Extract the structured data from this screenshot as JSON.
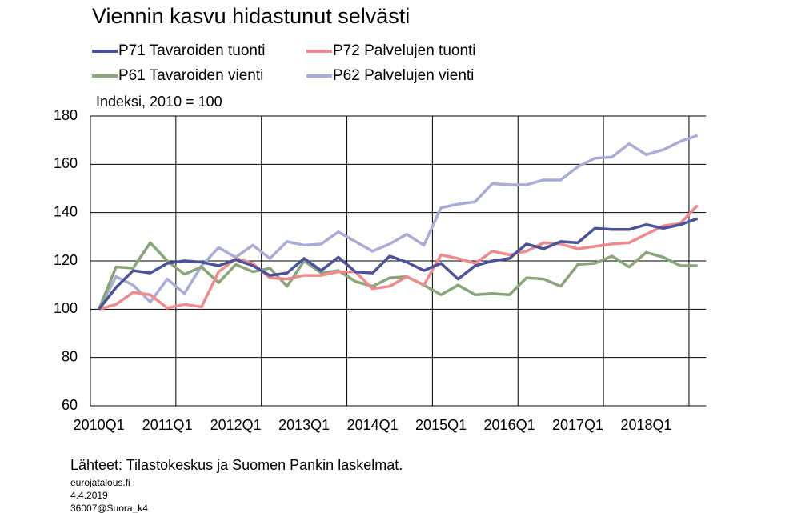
{
  "chart_data": {
    "type": "line",
    "title": "Viennin kasvu hidastunut selvästi",
    "y_label": "Indeksi, 2010 = 100",
    "categories": [
      "2010Q1",
      null,
      null,
      null,
      "2011Q1",
      null,
      null,
      null,
      "2012Q1",
      null,
      null,
      null,
      "2013Q1",
      null,
      null,
      null,
      "2014Q1",
      null,
      null,
      null,
      "2015Q1",
      null,
      null,
      null,
      "2016Q1",
      null,
      null,
      null,
      "2017Q1",
      null,
      null,
      null,
      "2018Q1",
      null,
      null,
      null
    ],
    "series": [
      {
        "name": "P71 Tavaroiden tuonti",
        "color": "#4a529a",
        "values": [
          100,
          109,
          116,
          115,
          119,
          120,
          119.5,
          118,
          120.5,
          118,
          114,
          115,
          121,
          116,
          121.5,
          115.5,
          115,
          122,
          119.5,
          116,
          119,
          112.5,
          118,
          120,
          121,
          127,
          125,
          128,
          127.5,
          133.5,
          133,
          133,
          135,
          133.5,
          135,
          137.5
        ]
      },
      {
        "name": "P72 Palvelujen tuonti",
        "color": "#ef8b8d",
        "values": [
          100,
          102,
          107,
          106,
          100.5,
          102,
          101,
          115.5,
          121,
          119,
          113,
          112.5,
          114,
          114,
          115.5,
          115.5,
          108.5,
          109.5,
          113.5,
          110,
          122.5,
          121,
          119,
          124,
          122.5,
          124,
          127.5,
          127,
          125,
          126,
          127,
          127.5,
          131,
          134.5,
          135.5,
          143
        ]
      },
      {
        "name": "P61 Tavaroiden vienti",
        "color": "#8aa57a",
        "values": [
          100,
          117.5,
          117,
          127.5,
          120,
          114.5,
          117.5,
          111,
          118.5,
          115.5,
          117,
          109.5,
          120,
          115,
          116,
          111.5,
          109.5,
          113,
          113.5,
          110,
          106,
          110,
          106,
          106.5,
          106,
          113,
          112.5,
          109.5,
          118.5,
          119,
          122,
          117.5,
          123.5,
          121.5,
          118,
          118
        ]
      },
      {
        "name": "P62 Palvelujen vienti",
        "color": "#a9acd6",
        "values": [
          100,
          113.5,
          110,
          103,
          112.5,
          106.5,
          118,
          125.5,
          121.5,
          126.5,
          121,
          128,
          126.5,
          127,
          132,
          128,
          124,
          127,
          131,
          126.5,
          142,
          143.5,
          144.5,
          152,
          151.5,
          151.5,
          153.5,
          153.5,
          159,
          162.5,
          163,
          168.5,
          164,
          166,
          169.5,
          172
        ]
      }
    ],
    "ylim": [
      60,
      180
    ],
    "yticks": [
      60,
      80,
      100,
      120,
      140,
      160,
      180
    ],
    "grid": true,
    "source": "Lähteet: Tilastokeskus ja Suomen Pankin laskelmat.",
    "footer": [
      "eurojatalous.fi",
      "4.4.2019",
      "36007@Suora_k4"
    ]
  }
}
